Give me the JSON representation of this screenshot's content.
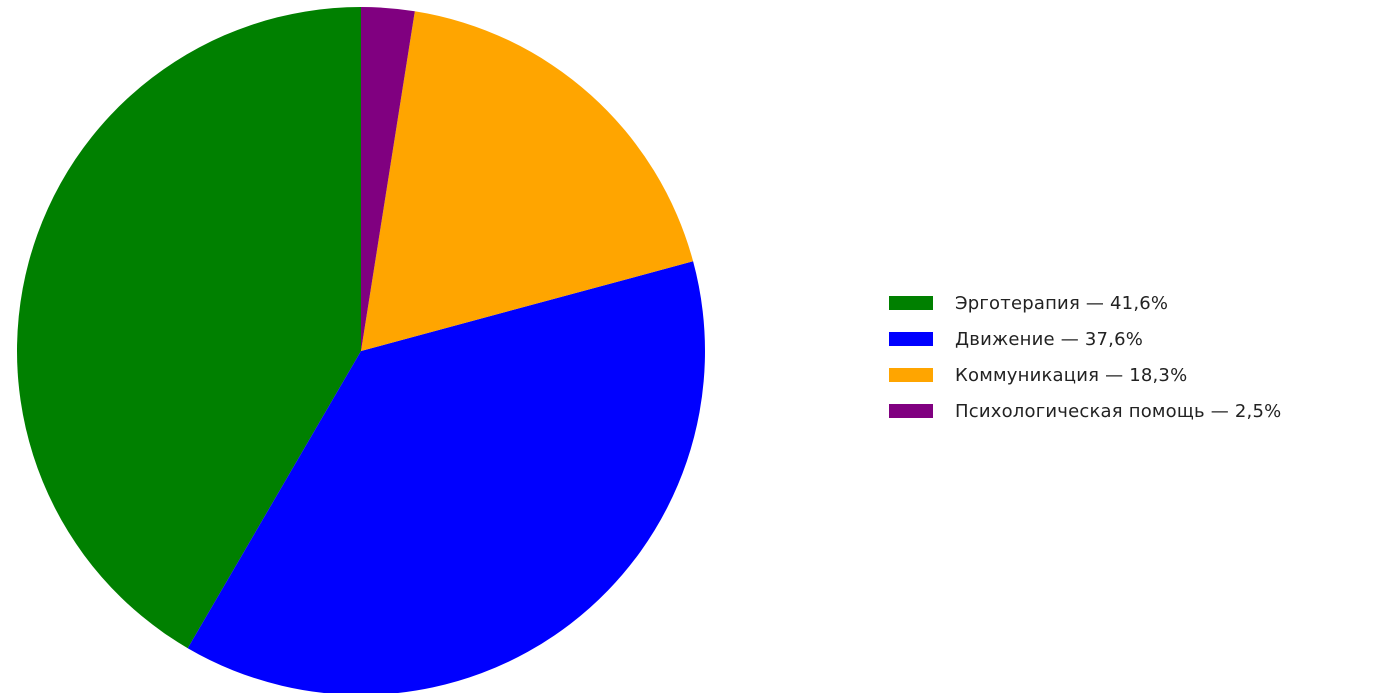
{
  "chart_data": {
    "type": "pie",
    "title": "",
    "start_angle_deg": 90,
    "direction": "counterclockwise",
    "legend_position": "right",
    "series": [
      {
        "name": "Эрготерапия — 41,6%",
        "value": 41.6,
        "color": "#008000"
      },
      {
        "name": "Движение — 37,6%",
        "value": 37.6,
        "color": "#0000ff"
      },
      {
        "name": "Коммуникация — 18,3%",
        "value": 18.3,
        "color": "#ffa500"
      },
      {
        "name": "Психологическая помощь — 2,5%",
        "value": 2.5,
        "color": "#800080"
      }
    ]
  }
}
